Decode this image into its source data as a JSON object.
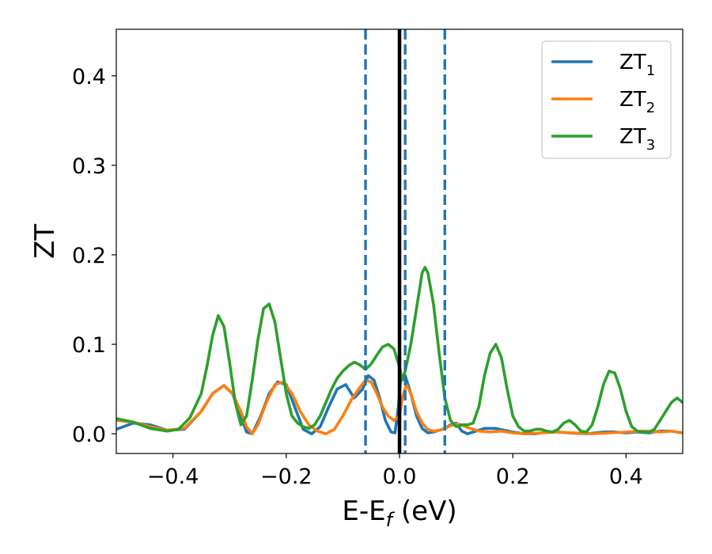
{
  "chart_data": {
    "type": "line",
    "title": "",
    "xlabel": {
      "main": "E-E",
      "sub": "f",
      "suffix": " (eV)"
    },
    "ylabel": "ZT",
    "xlim": [
      -0.5,
      0.5
    ],
    "ylim": [
      -0.022,
      0.452
    ],
    "xticks": [
      -0.4,
      -0.2,
      0.0,
      0.2,
      0.4
    ],
    "xtick_labels": [
      "−0.4",
      "−0.2",
      "0.0",
      "0.2",
      "0.4"
    ],
    "yticks": [
      0.0,
      0.1,
      0.2,
      0.3,
      0.4
    ],
    "ytick_labels": [
      "0.0",
      "0.1",
      "0.2",
      "0.3",
      "0.4"
    ],
    "grid": false,
    "legend_position": "top-right",
    "vertical_lines": [
      {
        "x": -0.06,
        "style": "dashed",
        "color": "#1f77b4"
      },
      {
        "x": 0.0,
        "style": "solid",
        "color": "#000000"
      },
      {
        "x": 0.01,
        "style": "dashed",
        "color": "#1f77b4"
      },
      {
        "x": 0.08,
        "style": "dashed",
        "color": "#1f77b4"
      }
    ],
    "series": [
      {
        "name": "ZT",
        "subscript": "1",
        "color": "#1f77b4",
        "x": [
          -0.5,
          -0.47,
          -0.44,
          -0.41,
          -0.38,
          -0.35,
          -0.33,
          -0.31,
          -0.295,
          -0.28,
          -0.27,
          -0.26,
          -0.245,
          -0.23,
          -0.215,
          -0.2,
          -0.185,
          -0.17,
          -0.155,
          -0.14,
          -0.125,
          -0.11,
          -0.095,
          -0.08,
          -0.065,
          -0.055,
          -0.045,
          -0.035,
          -0.025,
          -0.015,
          -0.008,
          -0.002,
          0.002,
          0.01,
          0.02,
          0.03,
          0.04,
          0.05,
          0.06,
          0.07,
          0.08,
          0.09,
          0.1,
          0.11,
          0.12,
          0.135,
          0.15,
          0.17,
          0.2,
          0.22,
          0.24,
          0.26,
          0.28,
          0.3,
          0.33,
          0.36,
          0.38,
          0.4,
          0.42,
          0.44,
          0.46,
          0.48,
          0.5
        ],
        "y": [
          0.005,
          0.012,
          0.01,
          0.004,
          0.005,
          0.025,
          0.045,
          0.054,
          0.045,
          0.02,
          0.002,
          0.0,
          0.02,
          0.045,
          0.058,
          0.055,
          0.03,
          0.005,
          0.0,
          0.008,
          0.03,
          0.05,
          0.055,
          0.04,
          0.05,
          0.065,
          0.06,
          0.04,
          0.015,
          0.002,
          0.001,
          0.03,
          0.06,
          0.065,
          0.045,
          0.02,
          0.006,
          0.001,
          0.002,
          0.004,
          0.006,
          0.01,
          0.012,
          0.003,
          0.0,
          0.003,
          0.006,
          0.006,
          0.002,
          0.0,
          0.0,
          0.002,
          0.002,
          0.001,
          0.0,
          0.002,
          0.002,
          0.001,
          0.002,
          0.001,
          0.003,
          0.003,
          0.001
        ]
      },
      {
        "name": "ZT",
        "subscript": "2",
        "color": "#ff7f0e",
        "x": [
          -0.5,
          -0.47,
          -0.44,
          -0.41,
          -0.38,
          -0.35,
          -0.33,
          -0.31,
          -0.295,
          -0.28,
          -0.27,
          -0.26,
          -0.25,
          -0.235,
          -0.22,
          -0.205,
          -0.19,
          -0.175,
          -0.16,
          -0.145,
          -0.13,
          -0.115,
          -0.1,
          -0.085,
          -0.07,
          -0.06,
          -0.05,
          -0.04,
          -0.03,
          -0.02,
          -0.01,
          0.0,
          0.005,
          0.012,
          0.02,
          0.03,
          0.04,
          0.05,
          0.06,
          0.07,
          0.08,
          0.09,
          0.1,
          0.11,
          0.12,
          0.14,
          0.16,
          0.18,
          0.2,
          0.22,
          0.25,
          0.28,
          0.31,
          0.34,
          0.37,
          0.4,
          0.43,
          0.46,
          0.48,
          0.5
        ],
        "y": [
          0.015,
          0.013,
          0.008,
          0.004,
          0.006,
          0.025,
          0.045,
          0.054,
          0.045,
          0.025,
          0.008,
          0.0,
          0.01,
          0.035,
          0.055,
          0.058,
          0.045,
          0.025,
          0.01,
          0.003,
          0.0,
          0.005,
          0.02,
          0.038,
          0.052,
          0.06,
          0.058,
          0.045,
          0.03,
          0.02,
          0.015,
          0.02,
          0.04,
          0.055,
          0.045,
          0.025,
          0.012,
          0.005,
          0.003,
          0.004,
          0.006,
          0.009,
          0.011,
          0.01,
          0.007,
          0.003,
          0.002,
          0.003,
          0.001,
          0.0,
          0.001,
          0.002,
          0.001,
          0.0,
          0.001,
          0.002,
          0.003,
          0.002,
          0.003,
          0.001
        ]
      },
      {
        "name": "ZT",
        "subscript": "3",
        "color": "#2ca02c",
        "x": [
          -0.5,
          -0.47,
          -0.44,
          -0.41,
          -0.39,
          -0.37,
          -0.35,
          -0.34,
          -0.33,
          -0.32,
          -0.31,
          -0.3,
          -0.29,
          -0.28,
          -0.27,
          -0.26,
          -0.25,
          -0.24,
          -0.23,
          -0.22,
          -0.21,
          -0.2,
          -0.19,
          -0.18,
          -0.17,
          -0.16,
          -0.15,
          -0.14,
          -0.13,
          -0.12,
          -0.11,
          -0.1,
          -0.09,
          -0.08,
          -0.07,
          -0.06,
          -0.05,
          -0.04,
          -0.03,
          -0.02,
          -0.01,
          0.0,
          0.005,
          0.01,
          0.02,
          0.03,
          0.04,
          0.045,
          0.05,
          0.06,
          0.07,
          0.08,
          0.09,
          0.1,
          0.11,
          0.12,
          0.13,
          0.14,
          0.15,
          0.16,
          0.17,
          0.18,
          0.19,
          0.2,
          0.21,
          0.22,
          0.23,
          0.24,
          0.25,
          0.26,
          0.27,
          0.28,
          0.29,
          0.3,
          0.31,
          0.32,
          0.33,
          0.34,
          0.35,
          0.36,
          0.37,
          0.38,
          0.39,
          0.4,
          0.41,
          0.42,
          0.43,
          0.44,
          0.45,
          0.46,
          0.47,
          0.48,
          0.49,
          0.5
        ],
        "y": [
          0.017,
          0.013,
          0.006,
          0.003,
          0.005,
          0.018,
          0.045,
          0.075,
          0.11,
          0.132,
          0.12,
          0.08,
          0.035,
          0.01,
          0.02,
          0.06,
          0.105,
          0.14,
          0.145,
          0.125,
          0.085,
          0.045,
          0.02,
          0.012,
          0.008,
          0.006,
          0.01,
          0.02,
          0.035,
          0.05,
          0.062,
          0.07,
          0.076,
          0.08,
          0.077,
          0.072,
          0.078,
          0.088,
          0.097,
          0.1,
          0.095,
          0.075,
          0.06,
          0.07,
          0.1,
          0.14,
          0.18,
          0.186,
          0.18,
          0.145,
          0.09,
          0.04,
          0.015,
          0.008,
          0.01,
          0.01,
          0.012,
          0.03,
          0.065,
          0.09,
          0.1,
          0.085,
          0.05,
          0.02,
          0.008,
          0.003,
          0.003,
          0.005,
          0.005,
          0.003,
          0.002,
          0.005,
          0.012,
          0.015,
          0.01,
          0.003,
          0.002,
          0.01,
          0.03,
          0.055,
          0.07,
          0.068,
          0.05,
          0.025,
          0.008,
          0.003,
          0.002,
          0.002,
          0.005,
          0.015,
          0.025,
          0.035,
          0.04,
          0.035
        ]
      }
    ]
  }
}
